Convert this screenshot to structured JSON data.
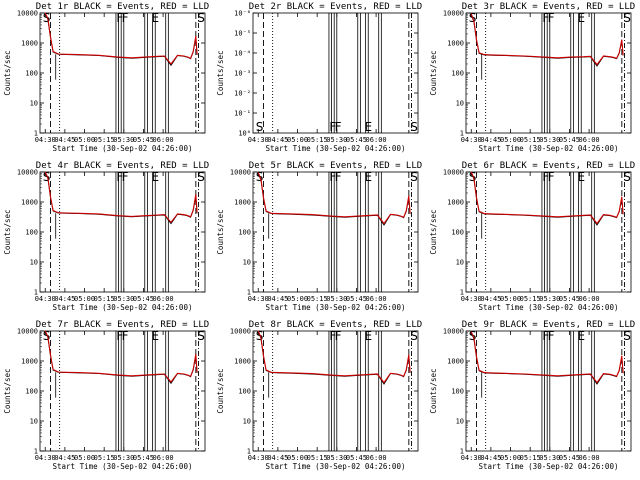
{
  "figure": {
    "xlabel": "Start Time (30-Sep-02 04:26:00)",
    "ylabel": "Counts/sec",
    "x_ticks": [
      "04:30",
      "04:45",
      "05:00",
      "05:15",
      "05:30",
      "05:45",
      "06:00"
    ]
  },
  "chart_data": [
    {
      "type": "line",
      "title": "Det 1r BLACK = Events, RED = LLD",
      "panel": 0,
      "scale": "log",
      "ylim": [
        1,
        10000
      ],
      "y_ticks": [
        "1",
        "10",
        "100",
        "1000",
        "10000"
      ],
      "dip": true,
      "flags": [
        "S",
        "F",
        "F",
        "E",
        "S"
      ],
      "series": [
        {
          "name": "Events",
          "color": "#000000",
          "x_minutes": [
            4,
            6,
            8,
            10,
            14,
            20,
            30,
            45,
            60,
            70,
            80,
            90,
            95,
            100,
            105,
            110,
            113,
            115,
            117,
            119,
            120
          ],
          "y": [
            10000,
            6000,
            1500,
            500,
            420,
            410,
            400,
            380,
            330,
            310,
            330,
            350,
            360,
            180,
            380,
            360,
            330,
            300,
            500,
            1500,
            400
          ]
        },
        {
          "name": "LLD",
          "color": "#cc0000",
          "x_minutes": [
            4,
            6,
            8,
            10,
            14,
            20,
            30,
            45,
            60,
            70,
            80,
            90,
            95,
            100,
            105,
            110,
            113,
            115,
            117,
            119,
            120
          ],
          "y": [
            10000,
            6500,
            1600,
            520,
            430,
            420,
            410,
            390,
            340,
            320,
            340,
            360,
            370,
            200,
            390,
            370,
            340,
            310,
            520,
            1700,
            420
          ]
        }
      ]
    },
    {
      "type": "line",
      "title": "Det 2r BLACK = Events, RED = LLD",
      "panel": 1,
      "scale": "log-small",
      "ylim": [
        1,
        1e-06
      ],
      "y_ticks": [
        "10⁰",
        "10⁻¹",
        "10⁻²",
        "10⁻³",
        "10⁻⁴",
        "10⁻⁵",
        "10⁻⁶"
      ],
      "dip": false,
      "flags": [
        "S",
        "F",
        "F",
        "E",
        "S"
      ],
      "series": []
    },
    {
      "type": "line",
      "title": "Det 3r BLACK = Events, RED = LLD",
      "panel": 2,
      "scale": "log",
      "ylim": [
        1,
        10000
      ],
      "y_ticks": [
        "1",
        "10",
        "100",
        "1000",
        "10000"
      ],
      "dip": true,
      "flags": [
        "S",
        "F",
        "F",
        "E",
        "S"
      ],
      "series": [
        {
          "name": "Events",
          "color": "#000000",
          "x_minutes": [
            4,
            6,
            8,
            10,
            14,
            20,
            30,
            45,
            60,
            70,
            80,
            90,
            95,
            100,
            105,
            110,
            113,
            115,
            117,
            119,
            120
          ],
          "y": [
            9000,
            5000,
            1200,
            450,
            400,
            390,
            380,
            360,
            330,
            310,
            330,
            340,
            350,
            170,
            360,
            340,
            320,
            300,
            450,
            1200,
            380
          ]
        },
        {
          "name": "LLD",
          "color": "#cc0000",
          "x_minutes": [
            4,
            6,
            8,
            10,
            14,
            20,
            30,
            45,
            60,
            70,
            80,
            90,
            95,
            100,
            105,
            110,
            113,
            115,
            117,
            119,
            120
          ],
          "y": [
            9500,
            5500,
            1300,
            470,
            410,
            400,
            390,
            370,
            340,
            320,
            340,
            350,
            360,
            190,
            370,
            350,
            330,
            310,
            470,
            1300,
            390
          ]
        }
      ]
    },
    {
      "type": "line",
      "title": "Det 4r BLACK = Events, RED = LLD",
      "panel": 3,
      "scale": "log",
      "ylim": [
        1,
        10000
      ],
      "y_ticks": [
        "1",
        "10",
        "100",
        "1000",
        "10000"
      ],
      "dip": true,
      "flags": [
        "S",
        "F",
        "F",
        "E",
        "S"
      ],
      "series": [
        {
          "name": "Events",
          "color": "#000000",
          "x_minutes": [
            4,
            6,
            8,
            10,
            14,
            20,
            30,
            45,
            60,
            70,
            80,
            90,
            95,
            100,
            105,
            110,
            113,
            115,
            117,
            119,
            120
          ],
          "y": [
            10000,
            6000,
            1400,
            500,
            430,
            420,
            410,
            390,
            340,
            320,
            340,
            360,
            370,
            190,
            390,
            370,
            340,
            310,
            520,
            1600,
            420
          ]
        },
        {
          "name": "LLD",
          "color": "#cc0000",
          "x_minutes": [
            4,
            6,
            8,
            10,
            14,
            20,
            30,
            45,
            60,
            70,
            80,
            90,
            95,
            100,
            105,
            110,
            113,
            115,
            117,
            119,
            120
          ],
          "y": [
            10000,
            6500,
            1500,
            520,
            440,
            430,
            420,
            400,
            350,
            330,
            350,
            370,
            380,
            210,
            400,
            380,
            350,
            320,
            540,
            1800,
            440
          ]
        }
      ]
    },
    {
      "type": "line",
      "title": "Det 5r BLACK = Events, RED = LLD",
      "panel": 4,
      "scale": "log",
      "ylim": [
        1,
        10000
      ],
      "y_ticks": [
        "1",
        "10",
        "100",
        "1000",
        "10000"
      ],
      "dip": true,
      "flags": [
        "S",
        "F",
        "F",
        "E",
        "S"
      ],
      "series": [
        {
          "name": "Events",
          "color": "#000000",
          "x_minutes": [
            4,
            6,
            8,
            10,
            14,
            20,
            30,
            45,
            60,
            70,
            80,
            90,
            95,
            100,
            105,
            110,
            113,
            115,
            117,
            119,
            120
          ],
          "y": [
            9000,
            5500,
            1300,
            480,
            410,
            400,
            390,
            370,
            330,
            310,
            330,
            350,
            360,
            170,
            380,
            360,
            330,
            300,
            480,
            1400,
            400
          ]
        },
        {
          "name": "LLD",
          "color": "#cc0000",
          "x_minutes": [
            4,
            6,
            8,
            10,
            14,
            20,
            30,
            45,
            60,
            70,
            80,
            90,
            95,
            100,
            105,
            110,
            113,
            115,
            117,
            119,
            120
          ],
          "y": [
            9500,
            6000,
            1400,
            500,
            420,
            410,
            400,
            380,
            340,
            320,
            340,
            360,
            370,
            190,
            390,
            370,
            340,
            310,
            500,
            1600,
            420
          ]
        }
      ]
    },
    {
      "type": "line",
      "title": "Det 6r BLACK = Events, RED = LLD",
      "panel": 5,
      "scale": "log",
      "ylim": [
        1,
        10000
      ],
      "y_ticks": [
        "1",
        "10",
        "100",
        "1000",
        "10000"
      ],
      "dip": true,
      "flags": [
        "S",
        "F",
        "F",
        "E",
        "S"
      ],
      "series": [
        {
          "name": "Events",
          "color": "#000000",
          "x_minutes": [
            4,
            6,
            8,
            10,
            14,
            20,
            30,
            45,
            60,
            70,
            80,
            90,
            95,
            100,
            105,
            110,
            113,
            115,
            117,
            119,
            120
          ],
          "y": [
            10000,
            5800,
            1300,
            470,
            400,
            390,
            380,
            360,
            330,
            310,
            330,
            350,
            360,
            170,
            370,
            350,
            320,
            300,
            470,
            1300,
            390
          ]
        },
        {
          "name": "LLD",
          "color": "#cc0000",
          "x_minutes": [
            4,
            6,
            8,
            10,
            14,
            20,
            30,
            45,
            60,
            70,
            80,
            90,
            95,
            100,
            105,
            110,
            113,
            115,
            117,
            119,
            120
          ],
          "y": [
            10000,
            6300,
            1400,
            490,
            410,
            400,
            390,
            370,
            340,
            320,
            340,
            360,
            370,
            190,
            380,
            360,
            330,
            310,
            490,
            1500,
            400
          ]
        }
      ]
    },
    {
      "type": "line",
      "title": "Det 7r BLACK = Events, RED = LLD",
      "panel": 6,
      "scale": "log",
      "ylim": [
        1,
        10000
      ],
      "y_ticks": [
        "1",
        "10",
        "100",
        "1000",
        "10000"
      ],
      "dip": true,
      "flags": [
        "S",
        "F",
        "F",
        "E",
        "S"
      ],
      "series": [
        {
          "name": "Events",
          "color": "#000000",
          "x_minutes": [
            4,
            6,
            8,
            10,
            14,
            20,
            30,
            45,
            60,
            70,
            80,
            90,
            95,
            100,
            105,
            110,
            113,
            115,
            117,
            119,
            120
          ],
          "y": [
            10000,
            6000,
            1500,
            500,
            420,
            410,
            400,
            380,
            330,
            310,
            330,
            350,
            360,
            180,
            380,
            360,
            330,
            300,
            500,
            1500,
            400
          ]
        },
        {
          "name": "LLD",
          "color": "#cc0000",
          "x_minutes": [
            4,
            6,
            8,
            10,
            14,
            20,
            30,
            45,
            60,
            70,
            80,
            90,
            95,
            100,
            105,
            110,
            113,
            115,
            117,
            119,
            120
          ],
          "y": [
            10000,
            6500,
            1600,
            520,
            430,
            420,
            410,
            390,
            340,
            320,
            340,
            360,
            370,
            200,
            390,
            370,
            340,
            310,
            520,
            1700,
            420
          ]
        }
      ]
    },
    {
      "type": "line",
      "title": "Det 8r BLACK = Events, RED = LLD",
      "panel": 7,
      "scale": "log",
      "ylim": [
        1,
        10000
      ],
      "y_ticks": [
        "1",
        "10",
        "100",
        "1000",
        "10000"
      ],
      "dip": true,
      "flags": [
        "S",
        "F",
        "F",
        "E",
        "S"
      ],
      "series": [
        {
          "name": "Events",
          "color": "#000000",
          "x_minutes": [
            4,
            6,
            8,
            10,
            14,
            20,
            30,
            45,
            60,
            70,
            80,
            90,
            95,
            100,
            105,
            110,
            113,
            115,
            117,
            119,
            120
          ],
          "y": [
            9500,
            5800,
            1400,
            480,
            410,
            400,
            390,
            370,
            330,
            310,
            330,
            350,
            360,
            170,
            380,
            360,
            330,
            300,
            480,
            1400,
            400
          ]
        },
        {
          "name": "LLD",
          "color": "#cc0000",
          "x_minutes": [
            4,
            6,
            8,
            10,
            14,
            20,
            30,
            45,
            60,
            70,
            80,
            90,
            95,
            100,
            105,
            110,
            113,
            115,
            117,
            119,
            120
          ],
          "y": [
            10000,
            6200,
            1500,
            500,
            420,
            410,
            400,
            380,
            340,
            320,
            340,
            360,
            370,
            190,
            390,
            370,
            340,
            310,
            500,
            1600,
            420
          ]
        }
      ]
    },
    {
      "type": "line",
      "title": "Det 9r BLACK = Events, RED = LLD",
      "panel": 8,
      "scale": "log",
      "ylim": [
        1,
        10000
      ],
      "y_ticks": [
        "1",
        "10",
        "100",
        "1000",
        "10000"
      ],
      "dip": true,
      "flags": [
        "S",
        "F",
        "F",
        "E",
        "S"
      ],
      "series": [
        {
          "name": "Events",
          "color": "#000000",
          "x_minutes": [
            4,
            6,
            8,
            10,
            14,
            20,
            30,
            45,
            60,
            70,
            80,
            90,
            95,
            100,
            105,
            110,
            113,
            115,
            117,
            119,
            120
          ],
          "y": [
            9000,
            5500,
            1300,
            470,
            400,
            390,
            380,
            360,
            330,
            310,
            330,
            350,
            360,
            170,
            370,
            350,
            320,
            300,
            470,
            1300,
            390
          ]
        },
        {
          "name": "LLD",
          "color": "#cc0000",
          "x_minutes": [
            4,
            6,
            8,
            10,
            14,
            20,
            30,
            45,
            60,
            70,
            80,
            90,
            95,
            100,
            105,
            110,
            113,
            115,
            117,
            119,
            120
          ],
          "y": [
            9500,
            6000,
            1400,
            490,
            410,
            400,
            390,
            370,
            340,
            320,
            340,
            360,
            370,
            190,
            380,
            360,
            330,
            310,
            490,
            1500,
            400
          ]
        }
      ]
    }
  ],
  "time_markers": {
    "dashed": [
      8,
      119
    ],
    "dotted": [
      15
    ],
    "solid_pairs": [
      [
        58,
        60
      ],
      [
        62,
        64
      ],
      [
        80,
        82
      ],
      [
        86,
        88
      ],
      [
        96,
        98
      ]
    ],
    "dash_dot": [
      121
    ]
  }
}
